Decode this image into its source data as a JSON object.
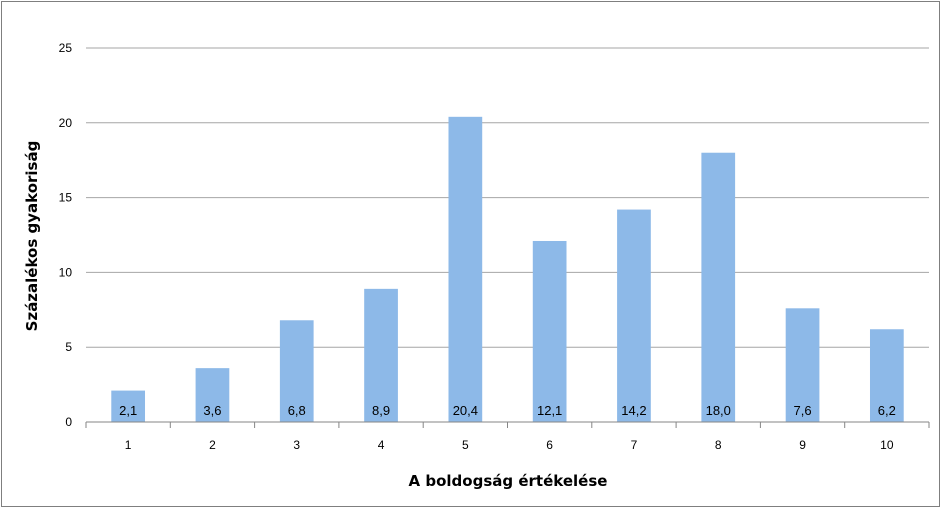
{
  "chart_data": {
    "type": "bar",
    "title": "",
    "xlabel": "A boldogság értékelése",
    "ylabel": "Százalékos gyakoriság",
    "categories": [
      "1",
      "2",
      "3",
      "4",
      "5",
      "6",
      "7",
      "8",
      "9",
      "10"
    ],
    "values": [
      2.1,
      3.6,
      6.8,
      8.9,
      20.4,
      12.1,
      14.2,
      18.0,
      7.6,
      6.2
    ],
    "data_labels": [
      "2,1",
      "3,6",
      "6,8",
      "8,9",
      "20,4",
      "12,1",
      "14,2",
      "18,0",
      "7,6",
      "6,2"
    ],
    "ylim": [
      0,
      25
    ],
    "yticks": [
      "0",
      "5",
      "10",
      "15",
      "20",
      "25"
    ],
    "grid": true,
    "legend": "none",
    "bar_color": "#8DB9E8",
    "grid_color": "#A6A6A6"
  }
}
